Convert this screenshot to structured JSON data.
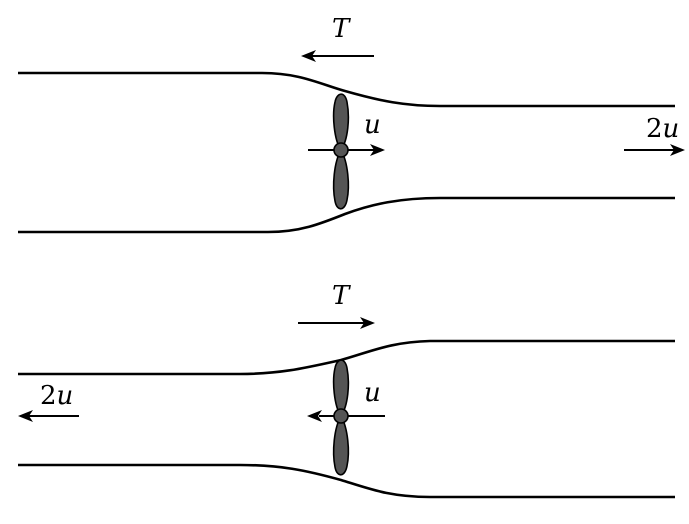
{
  "top_panel": {
    "thrust_label": "T",
    "propeller_speed_label": "u",
    "outflow_speed_coefficient": "2",
    "outflow_speed_variable": "u"
  },
  "bottom_panel": {
    "thrust_label": "T",
    "propeller_speed_label": "u",
    "outflow_speed_coefficient": "2",
    "outflow_speed_variable": "u"
  },
  "colors": {
    "stroke": "#000000",
    "propeller_fill": "#555555",
    "background": "#ffffff"
  }
}
